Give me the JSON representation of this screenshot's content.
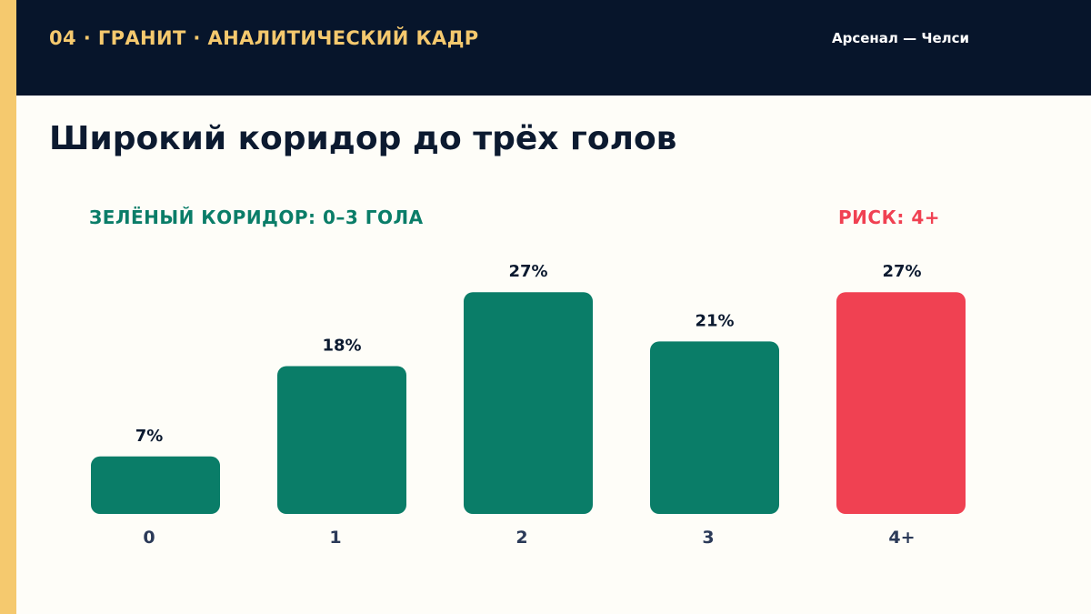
{
  "header": {
    "kicker": "04 · ГРАНИТ · АНАЛИТИЧЕСКИЙ КАДР",
    "match": "Арсенал — Челси"
  },
  "title": "Широкий коридор до трёх голов",
  "annotations": {
    "corridor": "ЗЕЛЁНЫЙ КОРИДОР: 0–3 ГОЛА",
    "risk": "РИСК: 4+"
  },
  "colors": {
    "accent": "#f5c96e",
    "header_bg": "#07152b",
    "corridor": "#0a7d68",
    "risk": "#f04152",
    "text_dark": "#0c1a30",
    "axis_text": "#2b3a58"
  },
  "chart_data": {
    "type": "bar",
    "categories": [
      "0",
      "1",
      "2",
      "3",
      "4+"
    ],
    "values": [
      7,
      18,
      27,
      21,
      27
    ],
    "value_labels": [
      "7%",
      "18%",
      "27%",
      "21%",
      "27%"
    ],
    "highlight": [
      "corridor",
      "corridor",
      "corridor",
      "corridor",
      "risk"
    ],
    "ylim": [
      0,
      30
    ],
    "grid": false,
    "legend": "none"
  }
}
